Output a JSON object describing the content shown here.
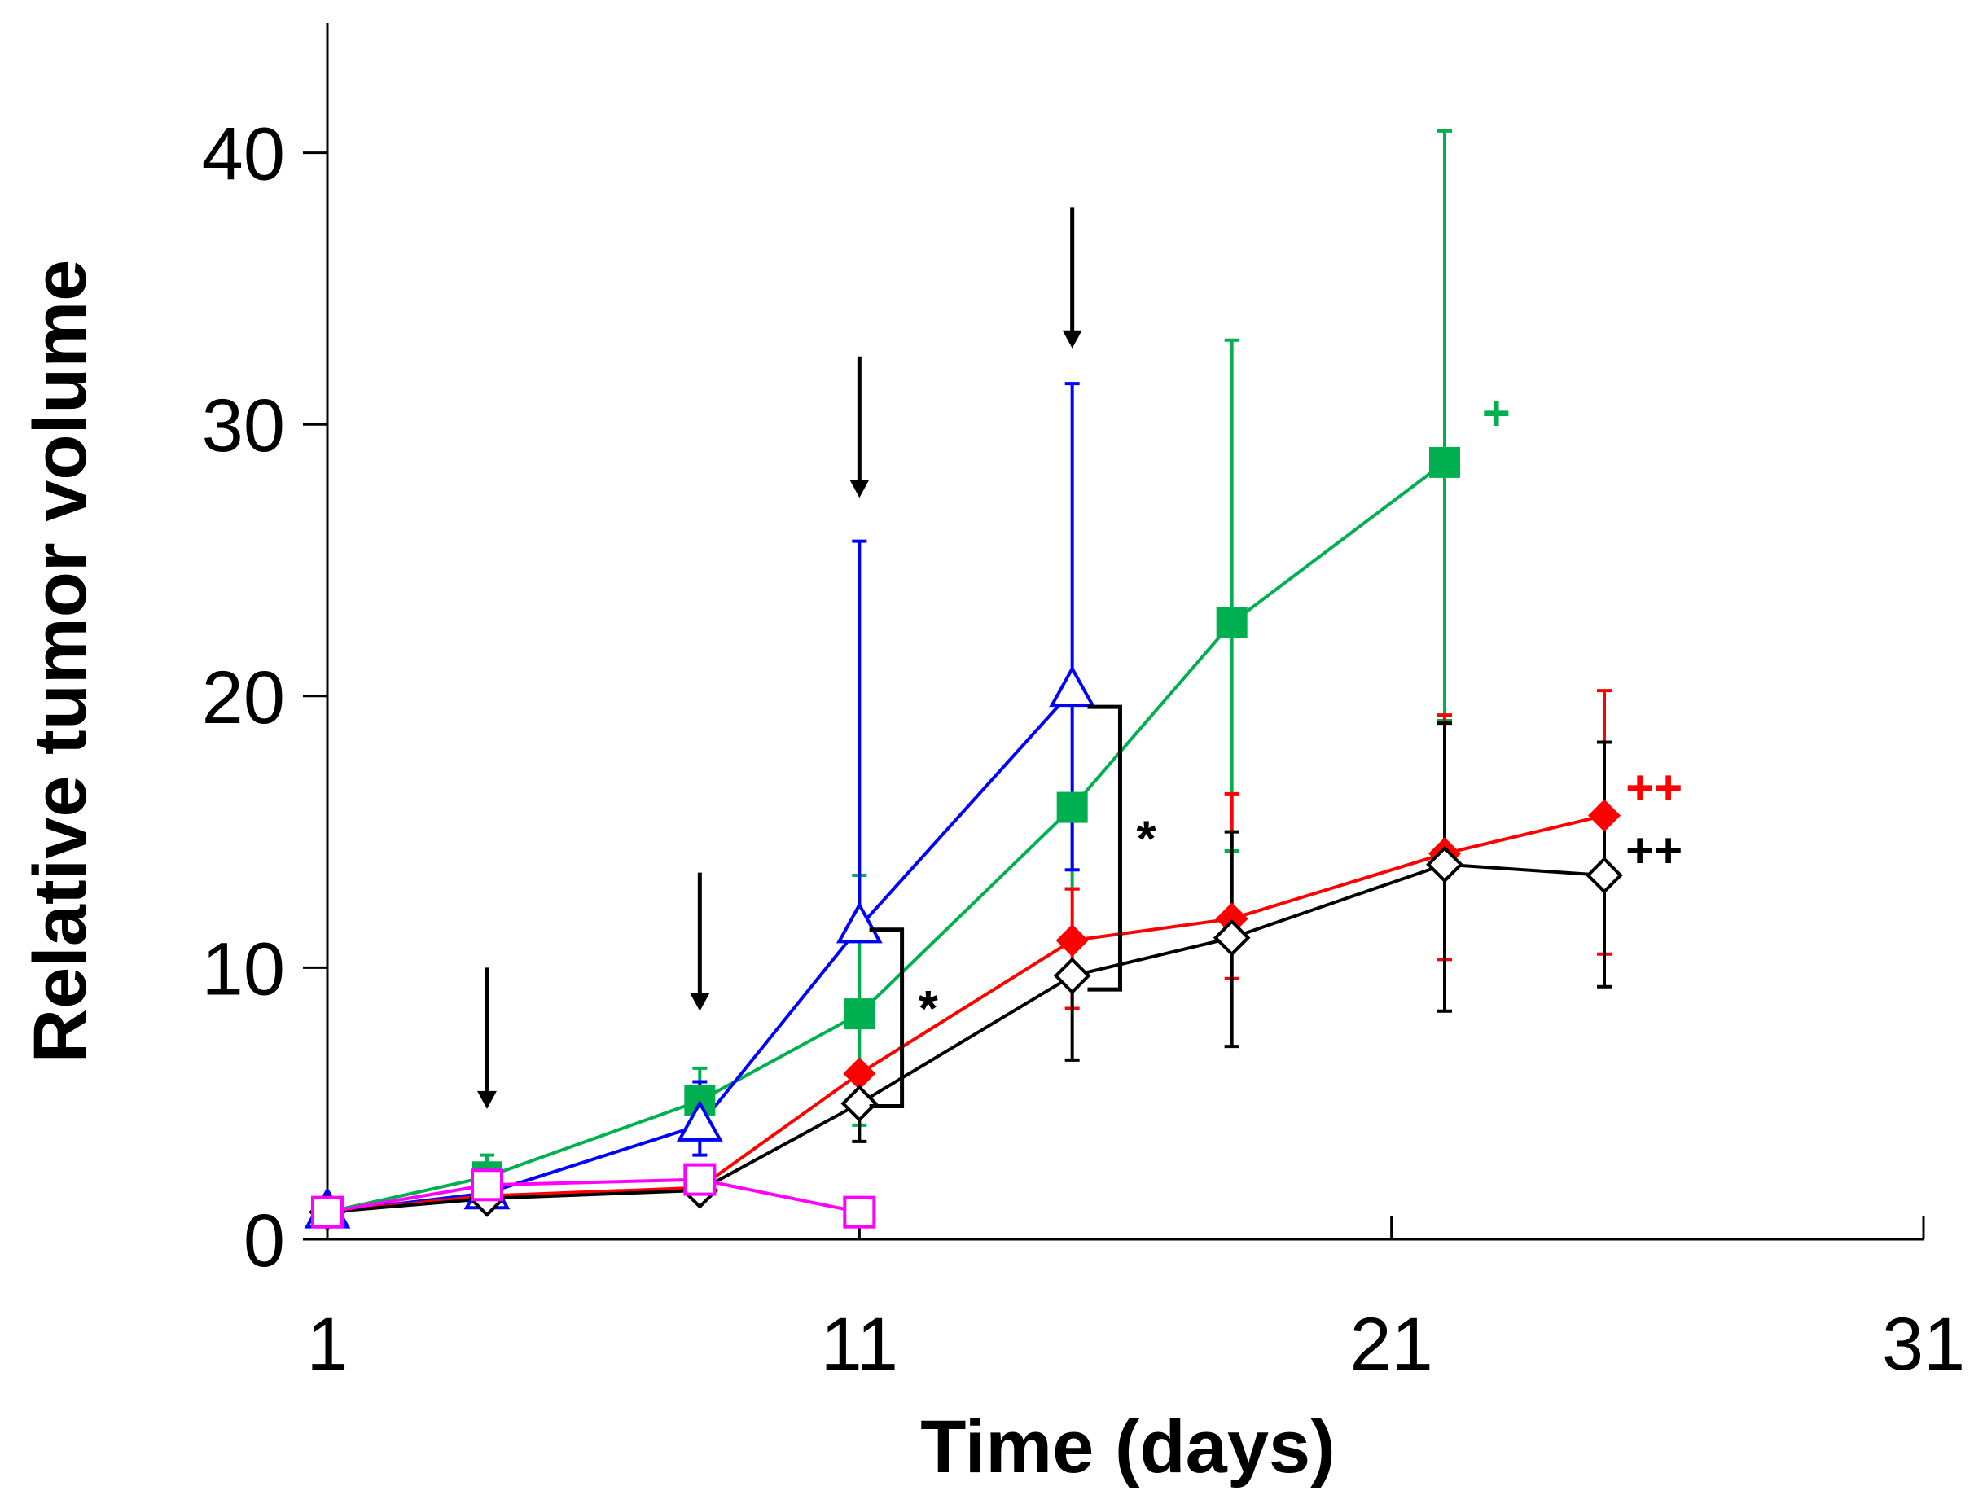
{
  "chart_data": {
    "type": "line",
    "title": "",
    "xlabel": "Time (days)",
    "ylabel": "Relative tumor volume",
    "xlim": [
      1,
      31
    ],
    "ylim": [
      0,
      45
    ],
    "xticks": [
      1,
      11,
      21,
      31
    ],
    "yticks": [
      0,
      10,
      20,
      30,
      40
    ],
    "grid": false,
    "legend": "none",
    "series": [
      {
        "name": "green-filled-square",
        "color": "#00b050",
        "marker": "square-filled",
        "x": [
          1,
          4,
          8,
          11,
          15,
          18,
          22
        ],
        "y": [
          1.0,
          2.3,
          5.1,
          8.3,
          15.9,
          22.7,
          28.6
        ],
        "err_low": [
          null,
          0.4,
          1.2,
          4.1,
          3.0,
          8.4,
          9.5
        ],
        "err_high": [
          null,
          0.8,
          1.2,
          5.1,
          null,
          10.4,
          12.2
        ]
      },
      {
        "name": "blue-open-triangle",
        "color": "#0000ff",
        "marker": "triangle-open",
        "x": [
          1,
          4,
          8,
          11,
          15
        ],
        "y": [
          1.0,
          1.7,
          4.2,
          11.5,
          20.2
        ],
        "err_low": [
          null,
          null,
          1.1,
          null,
          6.6
        ],
        "err_high": [
          null,
          null,
          1.6,
          14.2,
          11.3
        ]
      },
      {
        "name": "red-filled-diamond",
        "color": "#ff0000",
        "marker": "diamond-filled",
        "x": [
          1,
          4,
          8,
          11,
          15,
          18,
          22,
          25
        ],
        "y": [
          1.0,
          1.6,
          1.9,
          6.1,
          11.0,
          11.8,
          14.2,
          15.6
        ],
        "err_low": [
          null,
          null,
          null,
          null,
          2.5,
          2.2,
          3.9,
          5.1
        ],
        "err_high": [
          null,
          null,
          null,
          null,
          1.9,
          4.6,
          5.1,
          4.6
        ]
      },
      {
        "name": "black-open-diamond",
        "color": "#000000",
        "marker": "diamond-open",
        "x": [
          1,
          4,
          8,
          11,
          15,
          18,
          22,
          25
        ],
        "y": [
          1.0,
          1.5,
          1.8,
          5.0,
          9.7,
          11.1,
          13.8,
          13.4
        ],
        "err_low": [
          null,
          null,
          null,
          1.4,
          3.1,
          4.0,
          5.4,
          4.1
        ],
        "err_high": [
          null,
          null,
          null,
          null,
          null,
          3.9,
          5.2,
          4.9
        ]
      },
      {
        "name": "magenta-open-square",
        "color": "#ff00ff",
        "marker": "square-open",
        "x": [
          1,
          4,
          8,
          11
        ],
        "y": [
          1.0,
          2.0,
          2.2,
          1.0
        ],
        "err_low": [
          null,
          null,
          null,
          null
        ],
        "err_high": [
          null,
          null,
          null,
          null
        ]
      }
    ],
    "arrows": [
      {
        "x": 4,
        "y_top": 10,
        "y_tip": 4.8
      },
      {
        "x": 8,
        "y_top": 13.5,
        "y_tip": 8.4
      },
      {
        "x": 11,
        "y_top": 32.5,
        "y_tip": 27.3
      },
      {
        "x": 15,
        "y_top": 38,
        "y_tip": 32.8
      }
    ],
    "significance_brackets": [
      {
        "label": "*",
        "x": 11.8,
        "y_low": 4.9,
        "y_high": 11.4
      },
      {
        "label": "*",
        "x": 15.9,
        "y_low": 9.2,
        "y_high": 19.6
      }
    ],
    "annotations": [
      {
        "text": "+",
        "color": "#00b050",
        "x": 22.7,
        "y": 29.8
      },
      {
        "text": "++",
        "color": "#ff0000",
        "x": 25.4,
        "y": 16.0
      },
      {
        "text": "++",
        "color": "#000000",
        "x": 25.4,
        "y": 13.7
      }
    ]
  }
}
